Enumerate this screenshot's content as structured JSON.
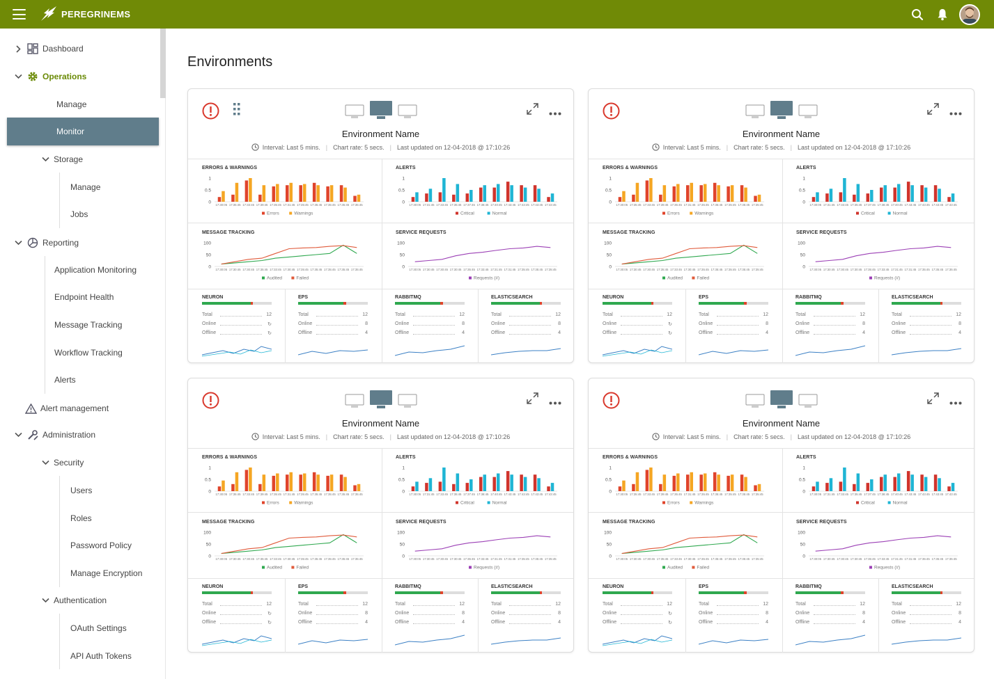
{
  "app": {
    "title": "PEREGRINEMS"
  },
  "page": {
    "title": "Environments"
  },
  "sidebar": {
    "items": [
      {
        "label": "Dashboard"
      },
      {
        "label": "Operations"
      },
      {
        "label": "Manage"
      },
      {
        "label": "Monitor"
      },
      {
        "label": "Storage"
      },
      {
        "label": "Manage"
      },
      {
        "label": "Jobs"
      },
      {
        "label": "Reporting"
      },
      {
        "label": "Application Monitoring"
      },
      {
        "label": "Endpoint Health"
      },
      {
        "label": "Message Tracking"
      },
      {
        "label": "Workflow Tracking"
      },
      {
        "label": "Alerts"
      },
      {
        "label": "Alert management"
      },
      {
        "label": "Administration"
      },
      {
        "label": "Security"
      },
      {
        "label": "Users"
      },
      {
        "label": "Roles"
      },
      {
        "label": "Password Policy"
      },
      {
        "label": "Manage Encryption"
      },
      {
        "label": "Authentication"
      },
      {
        "label": "OAuth Settings"
      },
      {
        "label": "API Auth Tokens"
      }
    ]
  },
  "colors": {
    "brand": "#708a06",
    "active_nav": "#607d8b",
    "errors": "#e0442b",
    "warnings": "#f5a623",
    "critical": "#d0342c",
    "normal": "#1fb5d4",
    "audited": "#2fa84f",
    "failed": "#e05a3a",
    "requests": "#9b3fb5",
    "bar_fill_good": "#2fa84f",
    "bar_fill_bad": "#e0442b",
    "alert_icon": "#d9382c"
  },
  "icons": {
    "menu": "hamburger-icon",
    "search": "search-icon",
    "notifications": "bell-icon",
    "alert": "exclamation-circle-icon",
    "expand": "expand-icon",
    "more": "more-horizontal-icon",
    "clock": "clock-icon",
    "drag": "drag-handle-icon"
  },
  "card_template": {
    "env_name": "Environment Name",
    "interval": "Interval: Last 5 mins.",
    "chart_rate": "Chart rate: 5 secs.",
    "last_updated": "Last updated on 12-04-2018 @ 17:10:26",
    "panels": {
      "errors_warnings": {
        "title": "ERRORS & WARNINGS",
        "legend": [
          "Errors",
          "Warnings"
        ]
      },
      "alerts": {
        "title": "ALERTS",
        "legend": [
          "Critical",
          "Normal"
        ]
      },
      "message_tracking": {
        "title": "MESSAGE TRACKING",
        "legend": [
          "Audited",
          "Failed"
        ]
      },
      "service_requests": {
        "title": "SERVICE REQUESTS",
        "legend": [
          "Requests (#)"
        ]
      }
    },
    "services": [
      {
        "title": "NEURON",
        "progress": 0.7,
        "rows": [
          {
            "k": "Total",
            "v": "12"
          },
          {
            "k": "Online",
            "v": "↻"
          },
          {
            "k": "Offline",
            "v": "↻"
          }
        ]
      },
      {
        "title": "EPS",
        "progress": 0.65,
        "rows": [
          {
            "k": "Total",
            "v": "12"
          },
          {
            "k": "Online",
            "v": "8"
          },
          {
            "k": "Offline",
            "v": "4"
          }
        ]
      },
      {
        "title": "RABBITMQ",
        "progress": 0.65,
        "rows": [
          {
            "k": "Total",
            "v": "12"
          },
          {
            "k": "Online",
            "v": "8"
          },
          {
            "k": "Offline",
            "v": "4"
          }
        ]
      },
      {
        "title": "ELASTICSEARCH",
        "progress": 0.7,
        "rows": [
          {
            "k": "Total",
            "v": "12"
          },
          {
            "k": "Online",
            "v": "8"
          },
          {
            "k": "Offline",
            "v": "4"
          }
        ]
      }
    ]
  },
  "chart_data": [
    {
      "type": "bar",
      "title": "ERRORS & WARNINGS",
      "yticks": [
        "1",
        "0.5",
        "0"
      ],
      "ylim": [
        0,
        1
      ],
      "categories": [
        "17:30:05",
        "17:35:45",
        "17:33:45",
        "17:39:45",
        "17:35:45",
        "17:31:45",
        "17:35:45",
        "17:35:45",
        "17:35:45",
        "17:35:45",
        "17:35:45"
      ],
      "series": [
        {
          "name": "Errors",
          "values": [
            0.2,
            0.3,
            0.9,
            0.3,
            0.65,
            0.7,
            0.7,
            0.8,
            0.65,
            0.7,
            0.25
          ]
        },
        {
          "name": "Warnings",
          "values": [
            0.45,
            0.8,
            1.0,
            0.7,
            0.75,
            0.8,
            0.75,
            0.7,
            0.7,
            0.6,
            0.3
          ]
        }
      ]
    },
    {
      "type": "bar",
      "title": "ALERTS",
      "yticks": [
        "1",
        "0.5",
        "0"
      ],
      "ylim": [
        0,
        1
      ],
      "categories": [
        "17:30:05",
        "17:31:45",
        "17:33:45",
        "17:35:45",
        "17:37:45",
        "17:38:45",
        "17:40:45",
        "17:43:45",
        "17:43:45",
        "17:43:45",
        "17:43:45"
      ],
      "series": [
        {
          "name": "Critical",
          "values": [
            0.2,
            0.35,
            0.4,
            0.3,
            0.35,
            0.6,
            0.6,
            0.85,
            0.7,
            0.7,
            0.2
          ]
        },
        {
          "name": "Normal",
          "values": [
            0.4,
            0.55,
            1.0,
            0.75,
            0.5,
            0.7,
            0.75,
            0.7,
            0.6,
            0.55,
            0.35
          ]
        }
      ]
    },
    {
      "type": "line",
      "title": "MESSAGE TRACKING",
      "yticks": [
        "100",
        "50",
        "0"
      ],
      "ylim": [
        0,
        100
      ],
      "x": [
        "17:30:05",
        "17:30:45",
        "17:30:45",
        "17:35:45",
        "17:33:45",
        "17:30:45",
        "17:35:45",
        "17:35:45",
        "17:35:45",
        "17:35:45",
        "17:35:45"
      ],
      "series": [
        {
          "name": "Audited",
          "values": [
            10,
            15,
            20,
            25,
            35,
            40,
            45,
            50,
            55,
            90,
            55
          ]
        },
        {
          "name": "Failed",
          "values": [
            10,
            20,
            30,
            35,
            55,
            75,
            78,
            80,
            85,
            88,
            80
          ]
        }
      ]
    },
    {
      "type": "line",
      "title": "SERVICE REQUESTS",
      "yticks": [
        "100",
        "50",
        "0"
      ],
      "ylim": [
        0,
        100
      ],
      "x": [
        "17:30:05",
        "17:30:45",
        "17:30:45",
        "17:30:45",
        "17:35:45",
        "17:33:45",
        "17:31:45",
        "17:31:45",
        "17:35:45",
        "17:35:45",
        "17:35:45"
      ],
      "series": [
        {
          "name": "Requests (#)",
          "values": [
            20,
            25,
            30,
            45,
            55,
            60,
            68,
            75,
            78,
            85,
            80
          ]
        }
      ]
    }
  ]
}
